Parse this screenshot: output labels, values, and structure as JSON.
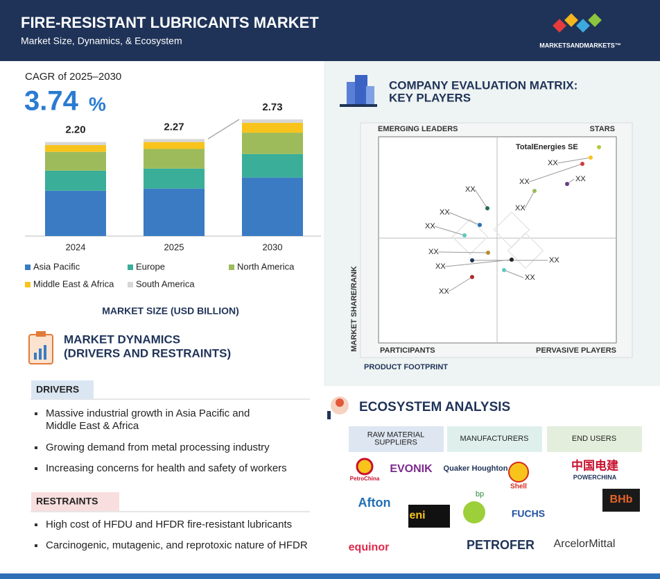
{
  "header": {
    "title": "FIRE-RESISTANT LUBRICANTS MARKET",
    "subtitle": "Market Size, Dynamics, & Ecosystem",
    "brand": "MARKETSANDMARKETS™"
  },
  "chart_data": {
    "type": "bar",
    "stacked": true,
    "cagr_label": "CAGR of 2025–2030",
    "cagr_value": "3.74",
    "cagr_unit": "%",
    "categories": [
      "2024",
      "2025",
      "2030"
    ],
    "series": [
      {
        "name": "Asia Pacific",
        "color": "#3a7bc4",
        "values": [
          1.06,
          1.11,
          1.37
        ]
      },
      {
        "name": "Europe",
        "color": "#3aae98",
        "values": [
          0.47,
          0.47,
          0.55
        ]
      },
      {
        "name": "North America",
        "color": "#9dbb5a",
        "values": [
          0.44,
          0.46,
          0.5
        ]
      },
      {
        "name": "Middle East & Africa",
        "color": "#f8c41c",
        "values": [
          0.16,
          0.16,
          0.23
        ]
      },
      {
        "name": "South America",
        "color": "#d6d6d6",
        "values": [
          0.07,
          0.07,
          0.08
        ]
      }
    ],
    "totals": [
      2.2,
      2.27,
      2.73
    ],
    "total_labels": [
      "2.20",
      "2.27",
      "2.73"
    ],
    "x_label": "MARKET SIZE (USD BILLION)"
  },
  "dynamics": {
    "title": [
      "MARKET DYNAMICS",
      "(DRIVERS AND RESTRAINTS)"
    ],
    "drivers": {
      "heading": "DRIVERS",
      "items": [
        [
          "Massive industrial growth in Asia Pacific and",
          "Middle East & Africa"
        ],
        [
          "Growing demand from metal processing industry"
        ],
        [
          "Increasing concerns for health and safety of workers"
        ]
      ]
    },
    "restraints": {
      "heading": "RESTRAINTS",
      "items": [
        [
          "High cost of HFDU and HFDR fire-resistant lubricants"
        ],
        [
          "Carcinogenic, mutagenic, and reprotoxic nature of HFDR"
        ]
      ]
    }
  },
  "matrix": {
    "title": [
      "COMPANY EVALUATION MATRIX:",
      "KEY PLAYERS"
    ],
    "quadrants": [
      "EMERGING LEADERS",
      "STARS",
      "PARTICIPANTS",
      "PERVASIVE PLAYERS"
    ],
    "y_label": "MARKET SHARE/RANK",
    "x_label": "PRODUCT FOOTPRINT",
    "players": [
      "TotalEnergies SE",
      "XX",
      "XX",
      "XX",
      "XX",
      "XX",
      "XX",
      "XX",
      "XX",
      "XX",
      "XX",
      "XX",
      "XX"
    ]
  },
  "ecosystem": {
    "title": "ECOSYSTEM ANALYSIS",
    "columns": [
      [
        "RAW MATERIAL",
        "SUPPLIERS"
      ],
      [
        "MANUFACTURERS"
      ],
      [
        "END USERS"
      ]
    ],
    "logos": [
      "PetroChina",
      "EVONIK",
      "Afton",
      "eni",
      "equinor",
      "Quaker Houghton",
      "Shell",
      "bp",
      "FUCHS",
      "PETROFER",
      "中国电建",
      "POWERCHINA",
      "BHb",
      "ArcelorMittal"
    ]
  }
}
